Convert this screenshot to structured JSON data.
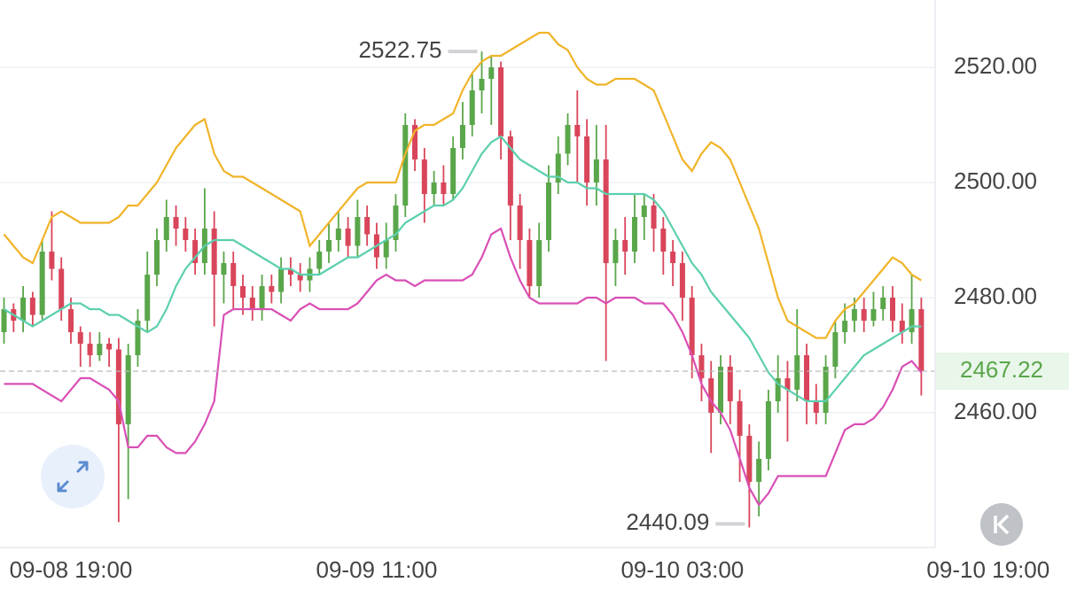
{
  "chart_data": {
    "type": "candlestick",
    "open": [
      2474,
      2478,
      2476,
      2480,
      2477,
      2488,
      2485,
      2478,
      2474,
      2472,
      2470,
      2472,
      2471,
      2458,
      2470,
      2476,
      2484,
      2490,
      2494,
      2492,
      2490,
      2486,
      2492,
      2484,
      2486,
      2482,
      2480,
      2478,
      2482,
      2481,
      2485,
      2484,
      2483,
      2485,
      2488,
      2490,
      2492,
      2489,
      2494,
      2491,
      2487,
      2490,
      2496,
      2510,
      2504,
      2498,
      2500,
      2498,
      2506,
      2510,
      2516,
      2518,
      2520,
      2508,
      2496,
      2490,
      2482,
      2490,
      2500,
      2505,
      2510,
      2508,
      2500,
      2504,
      2486,
      2490,
      2488,
      2494,
      2496,
      2492,
      2488,
      2486,
      2480,
      2470,
      2466,
      2460,
      2468,
      2462,
      2456,
      2448,
      2452,
      2462,
      2466,
      2464,
      2470,
      2462,
      2460,
      2468,
      2474,
      2476,
      2478,
      2476,
      2478,
      2480,
      2476,
      2474,
      2478
    ],
    "high": [
      2480,
      2479,
      2482,
      2481,
      2490,
      2495,
      2487,
      2480,
      2475,
      2474,
      2474,
      2473,
      2473,
      2472,
      2478,
      2488,
      2492,
      2497,
      2496,
      2494,
      2492,
      2499,
      2495,
      2488,
      2488,
      2484,
      2482,
      2484,
      2484,
      2487,
      2487,
      2486,
      2487,
      2490,
      2493,
      2495,
      2494,
      2497,
      2496,
      2493,
      2493,
      2498,
      2512,
      2511,
      2506,
      2502,
      2503,
      2508,
      2514,
      2519,
      2522.75,
      2522,
      2521,
      2509,
      2498,
      2492,
      2493,
      2503,
      2508,
      2512,
      2516,
      2511,
      2510,
      2510,
      2492,
      2494,
      2498,
      2498,
      2498,
      2494,
      2490,
      2488,
      2482,
      2472,
      2469,
      2470,
      2470,
      2464,
      2458,
      2455,
      2464,
      2470,
      2469,
      2478,
      2472,
      2465,
      2470,
      2476,
      2479,
      2480,
      2480,
      2481,
      2482,
      2482,
      2479,
      2484,
      2480
    ],
    "low": [
      2472,
      2474,
      2474,
      2475,
      2476,
      2483,
      2476,
      2472,
      2468,
      2468,
      2469,
      2468,
      2441,
      2445,
      2468,
      2474,
      2482,
      2488,
      2489,
      2488,
      2484,
      2484,
      2475,
      2479,
      2478,
      2477,
      2476,
      2476,
      2479,
      2479,
      2482,
      2481,
      2481,
      2484,
      2486,
      2488,
      2487,
      2487,
      2489,
      2485,
      2485,
      2488,
      2494,
      2502,
      2493,
      2496,
      2496,
      2497,
      2504,
      2508,
      2512,
      2510,
      2504,
      2490,
      2485,
      2480,
      2480,
      2488,
      2498,
      2503,
      2500,
      2496,
      2496,
      2469,
      2482,
      2484,
      2486,
      2490,
      2488,
      2484,
      2482,
      2476,
      2466,
      2462,
      2453,
      2458,
      2458,
      2448,
      2440.09,
      2442,
      2450,
      2460,
      2455,
      2462,
      2458,
      2458,
      2458,
      2466,
      2472,
      2474,
      2474,
      2475,
      2476,
      2474,
      2472,
      2472,
      2463
    ],
    "close": [
      2478,
      2476,
      2480,
      2477,
      2488,
      2485,
      2478,
      2474,
      2472,
      2470,
      2472,
      2471,
      2458,
      2470,
      2476,
      2484,
      2490,
      2494,
      2492,
      2490,
      2486,
      2492,
      2484,
      2486,
      2482,
      2480,
      2478,
      2482,
      2481,
      2485,
      2484,
      2483,
      2485,
      2488,
      2490,
      2492,
      2489,
      2494,
      2491,
      2487,
      2490,
      2496,
      2510,
      2504,
      2498,
      2500,
      2498,
      2506,
      2510,
      2516,
      2518,
      2520,
      2508,
      2496,
      2490,
      2482,
      2490,
      2500,
      2505,
      2510,
      2508,
      2500,
      2504,
      2486,
      2490,
      2488,
      2494,
      2496,
      2492,
      2488,
      2486,
      2480,
      2470,
      2466,
      2460,
      2468,
      2462,
      2456,
      2448,
      2452,
      2462,
      2466,
      2464,
      2470,
      2462,
      2460,
      2468,
      2474,
      2476,
      2478,
      2476,
      2478,
      2480,
      2476,
      2474,
      2478,
      2467.22
    ],
    "up_color": "#5aa64a",
    "down_color": "#d9455a",
    "bands": [
      {
        "color": "#f0b429",
        "values": [
          2491,
          2489,
          2487,
          2486,
          2490,
          2494,
          2495,
          2494,
          2493,
          2493,
          2493,
          2493,
          2494,
          2496,
          2496,
          2498,
          2500,
          2503,
          2506,
          2508,
          2510,
          2511,
          2505,
          2502,
          2501,
          2501,
          2500,
          2499,
          2498,
          2497,
          2496,
          2495,
          2489,
          2491,
          2493,
          2495,
          2497,
          2499,
          2500,
          2500,
          2500,
          2500,
          2505,
          2509,
          2510,
          2510,
          2511,
          2512,
          2516,
          2519,
          2521,
          2522,
          2522,
          2523,
          2524,
          2525,
          2526,
          2526,
          2524,
          2523,
          2520,
          2518,
          2517,
          2517,
          2518,
          2518,
          2518,
          2517,
          2516,
          2512,
          2508,
          2504,
          2502,
          2505,
          2507,
          2506,
          2504,
          2500,
          2496,
          2492,
          2486,
          2480,
          2476,
          2475,
          2474,
          2473,
          2473,
          2476,
          2478,
          2479,
          2481,
          2483,
          2485,
          2487,
          2486,
          2484,
          2483
        ]
      },
      {
        "color": "#5ccfae",
        "values": [
          2478,
          2477,
          2476,
          2475,
          2476,
          2477,
          2478,
          2479,
          2479,
          2478,
          2478,
          2477,
          2477,
          2476,
          2475,
          2474,
          2475,
          2478,
          2482,
          2485,
          2487,
          2489,
          2490,
          2490,
          2490,
          2489,
          2488,
          2487,
          2486,
          2485,
          2485,
          2484,
          2484,
          2484,
          2485,
          2486,
          2487,
          2487,
          2488,
          2489,
          2490,
          2491,
          2493,
          2494,
          2495,
          2496,
          2496,
          2497,
          2499,
          2502,
          2505,
          2507,
          2508,
          2506,
          2504,
          2503,
          2502,
          2501,
          2501,
          2500,
          2500,
          2499,
          2499,
          2498,
          2498,
          2498,
          2498,
          2498,
          2497,
          2495,
          2492,
          2489,
          2486,
          2484,
          2481,
          2479,
          2477,
          2475,
          2473,
          2470,
          2467,
          2465,
          2464,
          2463,
          2462,
          2462,
          2462,
          2464,
          2466,
          2468,
          2470,
          2471,
          2472,
          2473,
          2474,
          2475,
          2475
        ]
      },
      {
        "color": "#d94fb5",
        "values": [
          2465,
          2465,
          2465,
          2465,
          2464,
          2463,
          2462,
          2464,
          2466,
          2466,
          2465,
          2464,
          2462,
          2454,
          2454,
          2456,
          2456,
          2454,
          2453,
          2453,
          2455,
          2458,
          2462,
          2477,
          2478,
          2478,
          2478,
          2478,
          2478,
          2477,
          2476,
          2478,
          2479,
          2478,
          2478,
          2478,
          2478,
          2479,
          2481,
          2483,
          2484,
          2483,
          2483,
          2482,
          2483,
          2483,
          2483,
          2483,
          2483,
          2484,
          2487,
          2491,
          2492,
          2487,
          2483,
          2480,
          2479,
          2479,
          2479,
          2479,
          2479,
          2480,
          2480,
          2479,
          2480,
          2480,
          2480,
          2479,
          2479,
          2479,
          2477,
          2474,
          2470,
          2465,
          2462,
          2460,
          2457,
          2452,
          2447,
          2444,
          2446,
          2449,
          2449,
          2449,
          2449,
          2449,
          2449,
          2453,
          2457,
          2458,
          2458,
          2459,
          2461,
          2464,
          2468,
          2469,
          2467
        ]
      }
    ],
    "xlim": [
      -0.42,
      97.45
    ],
    "xticks": [
      {
        "value": 7,
        "label": "09-08 19:00"
      },
      {
        "value": 39,
        "label": "09-09 11:00"
      },
      {
        "value": 71,
        "label": "09-10 03:00"
      },
      {
        "value": 103,
        "label": "09-10 19:00"
      }
    ],
    "ylim": [
      2436.6,
      2531.7
    ],
    "yticks": [
      {
        "value": 2460,
        "label": "2460.00"
      },
      {
        "value": 2480,
        "label": "2480.00"
      },
      {
        "value": 2500,
        "label": "2500.00"
      },
      {
        "value": 2520,
        "label": "2520.00"
      }
    ],
    "grid": true
  }
}
